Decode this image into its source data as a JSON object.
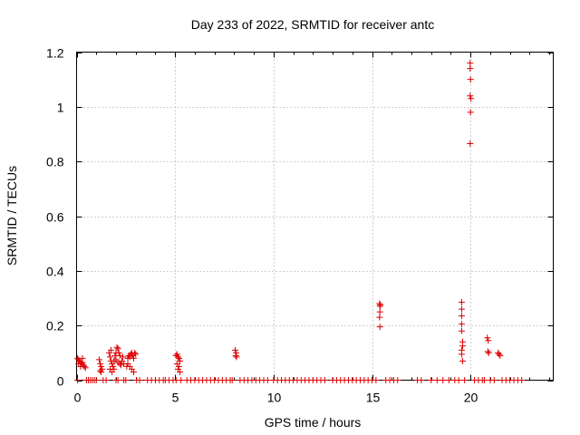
{
  "chart_data": {
    "type": "scatter",
    "title": "Day 233 of 2022, SRMTID for receiver antc",
    "xlabel": "GPS time / hours",
    "ylabel": "SRMTID / TECUs",
    "xlim": [
      0,
      24.2
    ],
    "ylim": [
      0,
      1.2
    ],
    "x_ticks": [
      0,
      5,
      10,
      15,
      20
    ],
    "x_tick_labels": [
      "0",
      "5",
      "10",
      "15",
      "20"
    ],
    "y_ticks": [
      0,
      0.2,
      0.4,
      0.6,
      0.8,
      1,
      1.2
    ],
    "y_tick_labels": [
      "0",
      "0.2",
      "0.4",
      "0.6",
      "0.8",
      "1",
      "1.2"
    ],
    "grid": true,
    "marker": "+",
    "series_color": "#dd0000",
    "series": [
      {
        "name": "SRMTID",
        "points": [
          [
            0.05,
            0.08
          ],
          [
            0.1,
            0.075
          ],
          [
            0.15,
            0.07
          ],
          [
            0.2,
            0.065
          ],
          [
            0.25,
            0.06
          ],
          [
            0.3,
            0.065
          ],
          [
            0.35,
            0.055
          ],
          [
            0.4,
            0.05
          ],
          [
            0.45,
            0.045
          ],
          [
            0.1,
            0.06
          ],
          [
            0.2,
            0.05
          ],
          [
            0.3,
            0.08
          ],
          [
            0.05,
            0.0
          ],
          [
            0.5,
            0.0
          ],
          [
            0.6,
            0.0
          ],
          [
            0.7,
            0.0
          ],
          [
            0.8,
            0.0
          ],
          [
            0.9,
            0.0
          ],
          [
            1.0,
            0.0
          ],
          [
            1.15,
            0.075
          ],
          [
            1.2,
            0.06
          ],
          [
            1.25,
            0.05
          ],
          [
            1.3,
            0.04
          ],
          [
            1.2,
            0.035
          ],
          [
            1.25,
            0.03
          ],
          [
            1.35,
            0.0
          ],
          [
            1.5,
            0.0
          ],
          [
            1.65,
            0.1
          ],
          [
            1.7,
            0.085
          ],
          [
            1.75,
            0.07
          ],
          [
            1.8,
            0.06
          ],
          [
            1.85,
            0.05
          ],
          [
            1.7,
            0.04
          ],
          [
            1.8,
            0.03
          ],
          [
            1.75,
            0.11
          ],
          [
            1.9,
            0.07
          ],
          [
            1.95,
            0.09
          ],
          [
            2.0,
            0.1
          ],
          [
            2.05,
            0.12
          ],
          [
            2.1,
            0.115
          ],
          [
            2.15,
            0.1
          ],
          [
            2.2,
            0.09
          ],
          [
            2.0,
            0.075
          ],
          [
            2.1,
            0.065
          ],
          [
            2.2,
            0.06
          ],
          [
            2.25,
            0.055
          ],
          [
            2.3,
            0.07
          ],
          [
            2.35,
            0.085
          ],
          [
            2.4,
            0.06
          ],
          [
            1.9,
            0.04
          ],
          [
            2.0,
            0.0
          ],
          [
            2.1,
            0.0
          ],
          [
            2.4,
            0.0
          ],
          [
            2.5,
            0.0
          ],
          [
            2.55,
            0.05
          ],
          [
            2.6,
            0.08
          ],
          [
            2.65,
            0.09
          ],
          [
            2.7,
            0.085
          ],
          [
            2.75,
            0.095
          ],
          [
            2.8,
            0.1
          ],
          [
            2.85,
            0.09
          ],
          [
            2.9,
            0.08
          ],
          [
            2.95,
            0.1
          ],
          [
            3.0,
            0.095
          ],
          [
            2.6,
            0.06
          ],
          [
            2.7,
            0.05
          ],
          [
            2.8,
            0.04
          ],
          [
            2.9,
            0.03
          ],
          [
            3.05,
            0.0
          ],
          [
            3.2,
            0.0
          ],
          [
            3.6,
            0.0
          ],
          [
            3.8,
            0.0
          ],
          [
            4.0,
            0.0
          ],
          [
            4.2,
            0.0
          ],
          [
            4.4,
            0.0
          ],
          [
            4.5,
            0.0
          ],
          [
            4.7,
            0.0
          ],
          [
            4.9,
            0.0
          ],
          [
            5.05,
            0.09
          ],
          [
            5.1,
            0.095
          ],
          [
            5.15,
            0.085
          ],
          [
            5.2,
            0.08
          ],
          [
            5.25,
            0.07
          ],
          [
            5.1,
            0.06
          ],
          [
            5.2,
            0.05
          ],
          [
            5.15,
            0.04
          ],
          [
            5.25,
            0.03
          ],
          [
            5.05,
            0.0
          ],
          [
            5.3,
            0.0
          ],
          [
            5.6,
            0.0
          ],
          [
            5.8,
            0.0
          ],
          [
            6.0,
            0.0
          ],
          [
            6.2,
            0.0
          ],
          [
            6.4,
            0.0
          ],
          [
            6.6,
            0.0
          ],
          [
            6.8,
            0.0
          ],
          [
            7.0,
            0.0
          ],
          [
            7.2,
            0.0
          ],
          [
            7.4,
            0.0
          ],
          [
            7.6,
            0.0
          ],
          [
            7.8,
            0.0
          ],
          [
            7.9,
            0.0
          ],
          [
            8.05,
            0.11
          ],
          [
            8.1,
            0.1
          ],
          [
            8.08,
            0.09
          ],
          [
            8.12,
            0.085
          ],
          [
            8.3,
            0.0
          ],
          [
            8.5,
            0.0
          ],
          [
            8.7,
            0.0
          ],
          [
            8.9,
            0.0
          ],
          [
            9.1,
            0.0
          ],
          [
            9.3,
            0.0
          ],
          [
            9.5,
            0.0
          ],
          [
            9.7,
            0.0
          ],
          [
            10.0,
            0.0
          ],
          [
            10.2,
            0.0
          ],
          [
            10.4,
            0.0
          ],
          [
            10.6,
            0.0
          ],
          [
            10.8,
            0.0
          ],
          [
            11.0,
            0.0
          ],
          [
            11.2,
            0.0
          ],
          [
            11.4,
            0.0
          ],
          [
            11.6,
            0.0
          ],
          [
            11.8,
            0.0
          ],
          [
            12.0,
            0.0
          ],
          [
            12.2,
            0.0
          ],
          [
            12.4,
            0.0
          ],
          [
            12.6,
            0.0
          ],
          [
            13.0,
            0.0
          ],
          [
            13.2,
            0.0
          ],
          [
            13.4,
            0.0
          ],
          [
            13.6,
            0.0
          ],
          [
            13.8,
            0.0
          ],
          [
            14.0,
            0.0
          ],
          [
            14.2,
            0.0
          ],
          [
            14.4,
            0.0
          ],
          [
            14.6,
            0.0
          ],
          [
            14.8,
            0.0
          ],
          [
            15.0,
            0.0
          ],
          [
            15.2,
            0.0
          ],
          [
            15.38,
            0.28
          ],
          [
            15.4,
            0.27
          ],
          [
            15.42,
            0.275
          ],
          [
            15.4,
            0.25
          ],
          [
            15.38,
            0.23
          ],
          [
            15.4,
            0.195
          ],
          [
            15.7,
            0.0
          ],
          [
            15.9,
            0.0
          ],
          [
            16.1,
            0.0
          ],
          [
            16.3,
            0.0
          ],
          [
            17.3,
            0.0
          ],
          [
            17.5,
            0.0
          ],
          [
            18.0,
            0.0
          ],
          [
            18.3,
            0.0
          ],
          [
            18.6,
            0.0
          ],
          [
            18.9,
            0.0
          ],
          [
            19.2,
            0.0
          ],
          [
            19.4,
            0.0
          ],
          [
            19.55,
            0.285
          ],
          [
            19.55,
            0.26
          ],
          [
            19.55,
            0.235
          ],
          [
            19.55,
            0.205
          ],
          [
            19.55,
            0.18
          ],
          [
            19.6,
            0.14
          ],
          [
            19.6,
            0.125
          ],
          [
            19.55,
            0.11
          ],
          [
            19.55,
            0.095
          ],
          [
            19.6,
            0.07
          ],
          [
            19.7,
            0.0
          ],
          [
            19.98,
            1.16
          ],
          [
            19.98,
            1.14
          ],
          [
            20.0,
            1.1
          ],
          [
            19.98,
            1.04
          ],
          [
            20.02,
            1.03
          ],
          [
            20.0,
            0.98
          ],
          [
            19.98,
            0.865
          ],
          [
            20.2,
            0.0
          ],
          [
            20.4,
            0.0
          ],
          [
            20.6,
            0.0
          ],
          [
            20.7,
            0.0
          ],
          [
            20.85,
            0.155
          ],
          [
            20.9,
            0.145
          ],
          [
            20.88,
            0.105
          ],
          [
            20.92,
            0.1
          ],
          [
            21.0,
            0.0
          ],
          [
            21.2,
            0.0
          ],
          [
            21.4,
            0.1
          ],
          [
            21.45,
            0.095
          ],
          [
            21.5,
            0.09
          ],
          [
            21.6,
            0.0
          ],
          [
            21.8,
            0.0
          ],
          [
            22.0,
            0.0
          ],
          [
            22.2,
            0.0
          ],
          [
            22.4,
            0.0
          ],
          [
            22.6,
            0.0
          ]
        ]
      }
    ]
  }
}
